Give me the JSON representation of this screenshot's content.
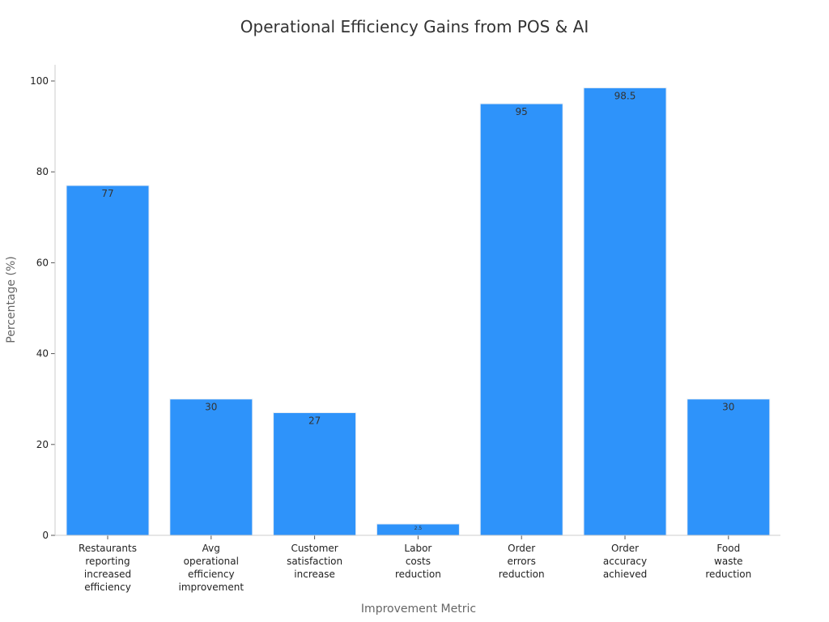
{
  "chart_data": {
    "type": "bar",
    "title": "Operational Efficiency Gains from POS & AI",
    "xlabel": "Improvement Metric",
    "ylabel": "Percentage (%)",
    "categories": [
      [
        "Restaurants",
        "reporting",
        "increased",
        "efficiency"
      ],
      [
        "Avg",
        "operational",
        "efficiency",
        "improvement"
      ],
      [
        "Customer",
        "satisfaction",
        "increase"
      ],
      [
        "Labor",
        "costs",
        "reduction"
      ],
      [
        "Order",
        "errors",
        "reduction"
      ],
      [
        "Order",
        "accuracy",
        "achieved"
      ],
      [
        "Food",
        "waste",
        "reduction"
      ]
    ],
    "values": [
      77,
      30,
      27,
      2.5,
      95,
      98.5,
      30
    ],
    "value_labels": [
      "77",
      "30",
      "27",
      "2.5",
      "95",
      "98.5",
      "30"
    ],
    "ylim": [
      0,
      100
    ],
    "yticks": [
      0,
      20,
      40,
      60,
      80,
      100
    ],
    "ytick_labels": [
      "0",
      "20",
      "40",
      "60",
      "80",
      "100"
    ],
    "grid": false,
    "colors": {
      "bar": "#2e93fa",
      "bar_edge": "#e8eef5",
      "axis": "#cccccc"
    }
  }
}
